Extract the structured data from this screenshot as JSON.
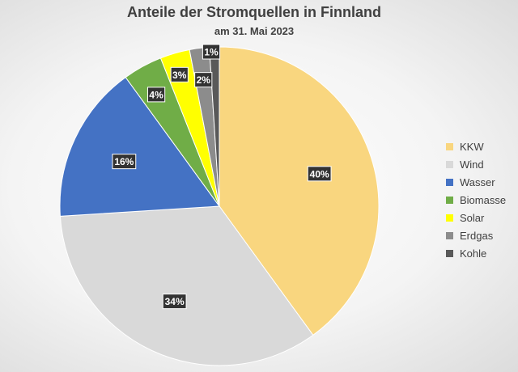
{
  "chart_data": {
    "type": "pie",
    "title": "Anteile der Stromquellen in Finnland",
    "subtitle": "am 31. Mai 2023",
    "categories": [
      "KKW",
      "Wind",
      "Wasser",
      "Biomasse",
      "Solar",
      "Erdgas",
      "Kohle"
    ],
    "values": [
      40,
      34,
      16,
      4,
      3,
      2,
      1
    ],
    "labels": [
      "40%",
      "34%",
      "16%",
      "4%",
      "3%",
      "2%",
      "1%"
    ],
    "colors": [
      "#f9d67f",
      "#d9d9d9",
      "#4472c4",
      "#70ad47",
      "#ffff00",
      "#8c8c8c",
      "#595959"
    ],
    "legend_position": "right"
  }
}
